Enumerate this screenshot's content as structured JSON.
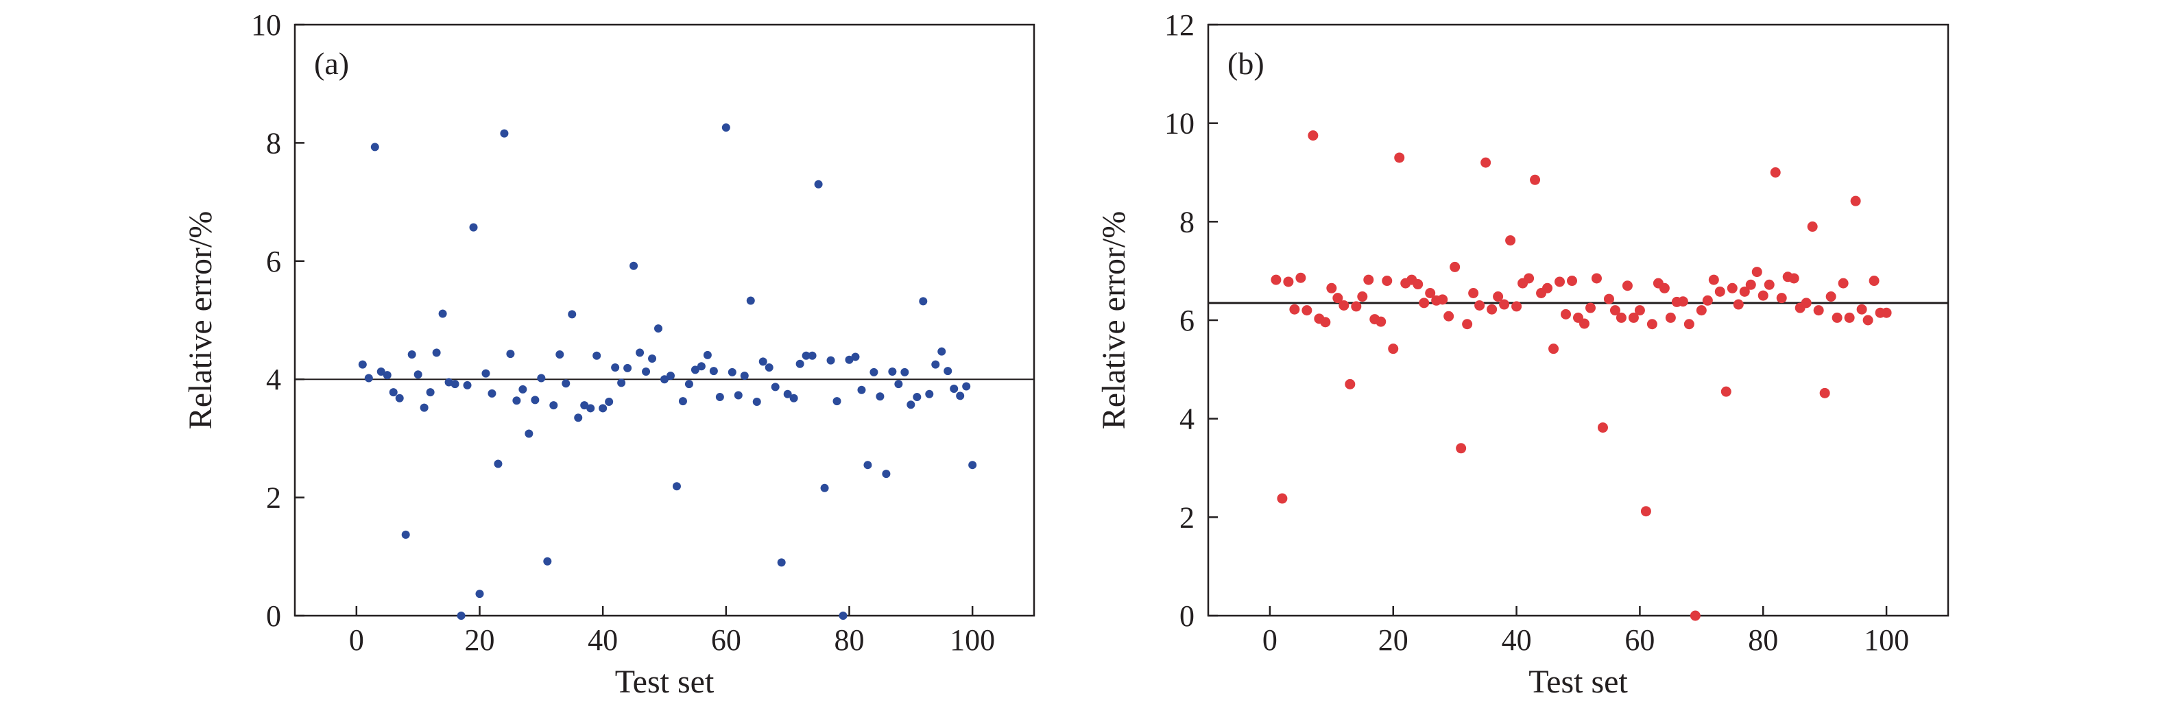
{
  "chart_data": [
    {
      "type": "scatter",
      "panel_label": "(a)",
      "xlabel": "Test set",
      "ylabel": "Relative error/%",
      "xlim": [
        -10,
        110
      ],
      "ylim": [
        0,
        10
      ],
      "xticks": [
        0,
        20,
        40,
        60,
        80,
        100
      ],
      "yticks": [
        0,
        2,
        4,
        6,
        8,
        10
      ],
      "reference_line": 4.0,
      "color": "#2b4b9b",
      "grid": false,
      "series": [
        {
          "x": [
            1,
            2,
            3,
            4,
            5,
            6,
            7,
            8,
            9,
            10,
            11,
            12,
            13,
            14,
            15,
            16,
            17,
            18,
            19,
            20,
            21,
            22,
            23,
            24,
            25,
            26,
            27,
            28,
            29,
            30,
            31,
            32,
            33,
            34,
            35,
            36,
            37,
            38,
            39,
            40,
            41,
            42,
            43,
            44,
            45,
            46,
            47,
            48,
            49,
            50,
            51,
            52,
            53,
            54,
            55,
            56,
            57,
            58,
            59,
            60,
            61,
            62,
            63,
            64,
            65,
            66,
            67,
            68,
            69,
            70,
            71,
            72,
            73,
            74,
            75,
            76,
            77,
            78,
            79,
            80,
            81,
            82,
            83,
            84,
            85,
            86,
            87,
            88,
            89,
            90,
            91,
            92,
            93,
            94,
            95,
            96,
            97,
            98,
            99,
            100
          ],
          "y": [
            4.25,
            4.02,
            7.93,
            4.13,
            4.07,
            3.78,
            3.68,
            1.37,
            4.42,
            4.08,
            3.52,
            3.78,
            4.45,
            5.11,
            3.95,
            3.92,
            0.0,
            3.9,
            6.57,
            0.37,
            4.1,
            3.76,
            2.57,
            8.16,
            4.43,
            3.64,
            3.83,
            3.08,
            3.65,
            4.02,
            0.92,
            3.56,
            4.42,
            3.93,
            5.1,
            3.35,
            3.56,
            3.51,
            4.4,
            3.51,
            3.62,
            4.2,
            3.94,
            4.19,
            5.92,
            4.45,
            4.13,
            4.35,
            4.86,
            4.0,
            4.06,
            2.19,
            3.63,
            3.92,
            4.16,
            4.22,
            4.41,
            4.14,
            3.7,
            8.26,
            4.12,
            3.73,
            4.06,
            5.33,
            3.62,
            4.3,
            4.2,
            3.87,
            0.9,
            3.75,
            3.68,
            4.26,
            4.4,
            4.4,
            7.3,
            2.16,
            4.32,
            3.63,
            0.0,
            4.33,
            4.38,
            3.82,
            2.55,
            4.12,
            3.71,
            2.4,
            4.13,
            3.92,
            4.12,
            3.57,
            3.7,
            5.32,
            3.75,
            4.25,
            4.47,
            4.14,
            3.84,
            3.72,
            3.88,
            2.55
          ]
        }
      ]
    },
    {
      "type": "scatter",
      "panel_label": "(b)",
      "xlabel": "Test set",
      "ylabel": "Relative error/%",
      "xlim": [
        -10,
        110
      ],
      "ylim": [
        0,
        12
      ],
      "xticks": [
        0,
        20,
        40,
        60,
        80,
        100
      ],
      "yticks": [
        0,
        2,
        4,
        6,
        8,
        10,
        12
      ],
      "reference_line": 6.35,
      "color": "#e03a3e",
      "grid": false,
      "series": [
        {
          "x": [
            1,
            2,
            3,
            4,
            5,
            6,
            7,
            8,
            9,
            10,
            11,
            12,
            13,
            14,
            15,
            16,
            17,
            18,
            19,
            20,
            21,
            22,
            23,
            24,
            25,
            26,
            27,
            28,
            29,
            30,
            31,
            32,
            33,
            34,
            35,
            36,
            37,
            38,
            39,
            40,
            41,
            42,
            43,
            44,
            45,
            46,
            47,
            48,
            49,
            50,
            51,
            52,
            53,
            54,
            55,
            56,
            57,
            58,
            59,
            60,
            61,
            62,
            63,
            64,
            65,
            66,
            67,
            68,
            69,
            70,
            71,
            72,
            73,
            74,
            75,
            76,
            77,
            78,
            79,
            80,
            81,
            82,
            83,
            84,
            85,
            86,
            87,
            88,
            89,
            90,
            91,
            92,
            93,
            94,
            95,
            96,
            97,
            98,
            99,
            100
          ],
          "y": [
            6.82,
            2.38,
            6.78,
            6.22,
            6.86,
            6.2,
            9.75,
            6.03,
            5.96,
            6.65,
            6.45,
            6.3,
            4.7,
            6.28,
            6.48,
            6.82,
            6.02,
            5.97,
            6.8,
            5.42,
            9.3,
            6.75,
            6.82,
            6.73,
            6.35,
            6.55,
            6.4,
            6.42,
            6.08,
            7.08,
            3.4,
            5.92,
            6.55,
            6.3,
            9.2,
            6.22,
            6.48,
            6.32,
            7.62,
            6.28,
            6.75,
            6.85,
            8.85,
            6.55,
            6.65,
            5.42,
            6.78,
            6.12,
            6.8,
            6.05,
            5.93,
            6.25,
            6.85,
            3.82,
            6.43,
            6.2,
            6.05,
            6.7,
            6.05,
            6.2,
            2.12,
            5.92,
            6.75,
            6.65,
            6.05,
            6.37,
            6.38,
            5.92,
            0.0,
            6.2,
            6.4,
            6.82,
            6.58,
            4.55,
            6.65,
            6.32,
            6.58,
            6.72,
            6.98,
            6.5,
            6.72,
            9.0,
            6.45,
            6.88,
            6.85,
            6.25,
            6.35,
            7.9,
            6.2,
            4.52,
            6.48,
            6.05,
            6.75,
            6.05,
            8.42,
            6.22,
            6.0,
            6.8,
            6.15,
            6.15
          ]
        }
      ]
    }
  ]
}
